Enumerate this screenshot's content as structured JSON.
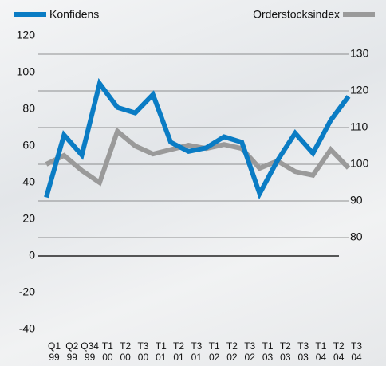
{
  "chart_data": {
    "type": "line",
    "categories": [
      [
        "Q1",
        "99"
      ],
      [
        "Q2",
        "99"
      ],
      [
        "Q34",
        "99"
      ],
      [
        "T1",
        "00"
      ],
      [
        "T2",
        "00"
      ],
      [
        "T3",
        "00"
      ],
      [
        "T1",
        "01"
      ],
      [
        "T2",
        "01"
      ],
      [
        "T3",
        "01"
      ],
      [
        "T1",
        "02"
      ],
      [
        "T2",
        "02"
      ],
      [
        "T3",
        "02"
      ],
      [
        "T1",
        "03"
      ],
      [
        "T2",
        "03"
      ],
      [
        "T3",
        "03"
      ],
      [
        "T1",
        "04"
      ],
      [
        "T2",
        "04"
      ],
      [
        "T3",
        "04"
      ]
    ],
    "series": [
      {
        "name": "Konfidens",
        "color": "#0a7cc4",
        "values": [
          32,
          66,
          55,
          94,
          81,
          78,
          88,
          62,
          57,
          59,
          65,
          62,
          34,
          52,
          67,
          56,
          74,
          87
        ]
      },
      {
        "name": "Orderstocksindex",
        "color": "#9a9a9a",
        "axis": "y2",
        "values": [
          100,
          102.4,
          98.3,
          95,
          109,
          105,
          102.8,
          104,
          105.2,
          104.3,
          105.4,
          104.3,
          98.9,
          100.9,
          98,
          97,
          104,
          99
        ]
      }
    ],
    "ylim": [
      -40,
      120
    ],
    "yticks": [
      -40,
      -20,
      0,
      20,
      40,
      60,
      80,
      100,
      120
    ],
    "y2lim": [
      55,
      135
    ],
    "y2ticks": [
      80,
      90,
      100,
      110,
      120,
      130
    ],
    "grid": true
  }
}
